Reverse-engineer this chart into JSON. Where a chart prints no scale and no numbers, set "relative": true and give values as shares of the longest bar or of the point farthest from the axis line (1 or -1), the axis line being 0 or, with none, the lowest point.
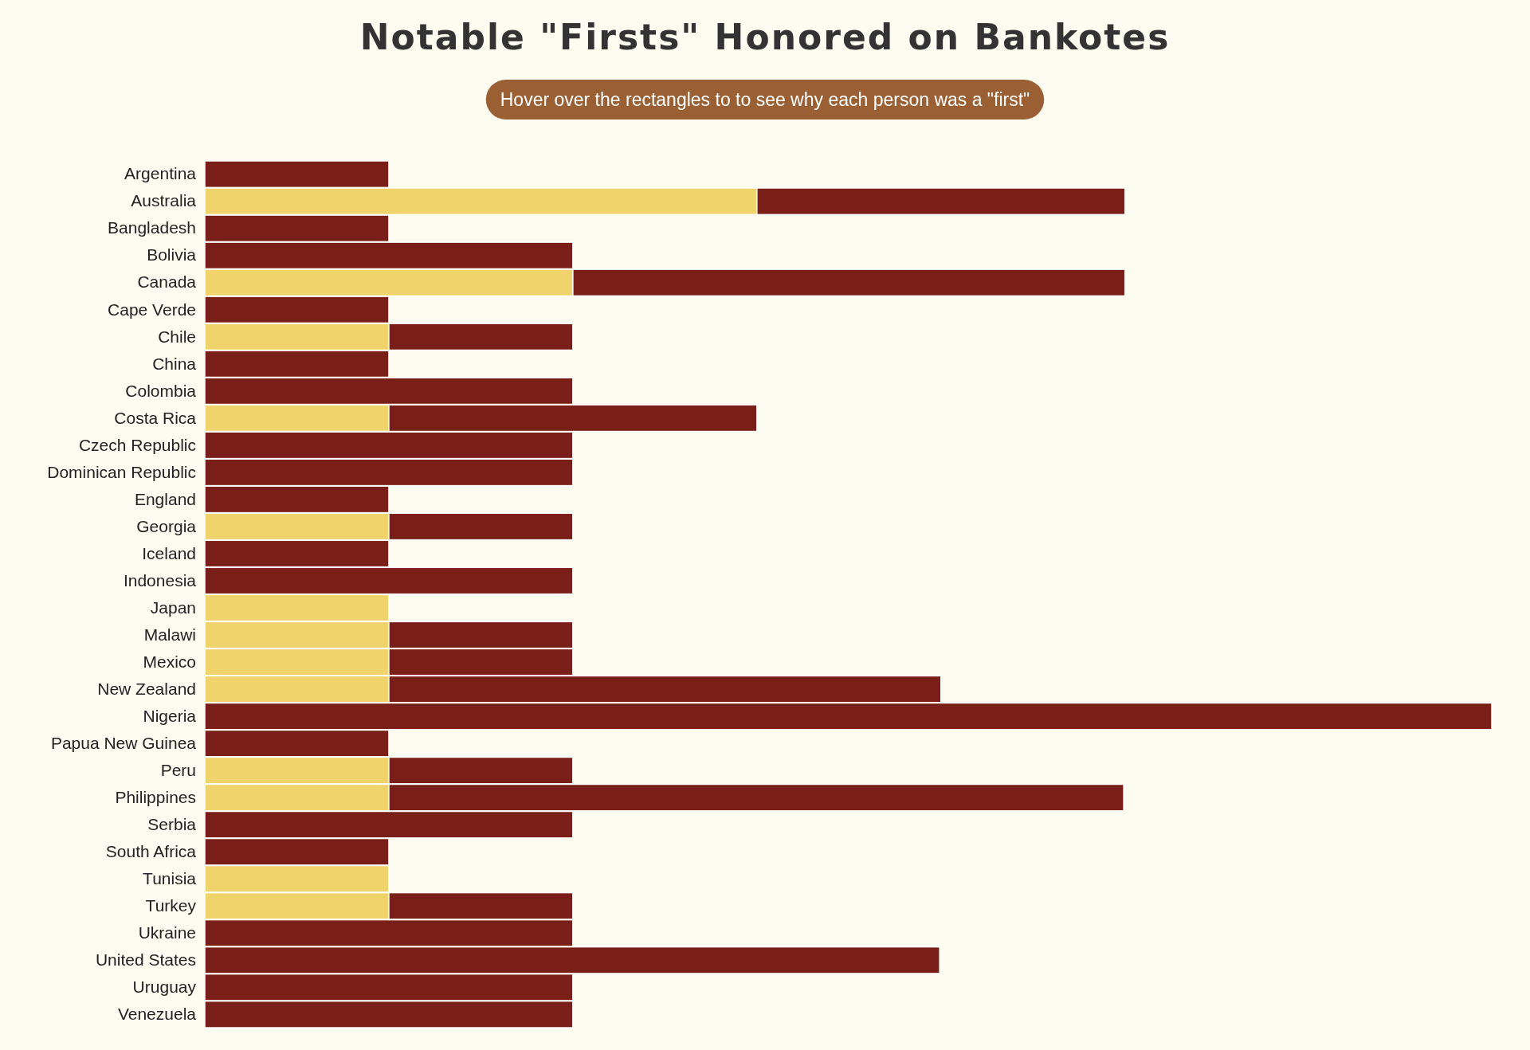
{
  "chart_data": {
    "type": "bar",
    "orientation": "horizontal",
    "stacked": true,
    "relative": true,
    "title": "Notable \"Firsts\" Honored on Bankotes",
    "subtitle": "Hover over the rectangles to to see why each person was a \"first\"",
    "categories": [
      "Argentina",
      "Australia",
      "Bangladesh",
      "Bolivia",
      "Canada",
      "Cape Verde",
      "Chile",
      "China",
      "Colombia",
      "Costa Rica",
      "Czech Republic",
      "Dominican Republic",
      "England",
      "Georgia",
      "Iceland",
      "Indonesia",
      "Japan",
      "Malawi",
      "Mexico",
      "New Zealand",
      "Nigeria",
      "Papua New Guinea",
      "Peru",
      "Philippines",
      "Serbia",
      "South Africa",
      "Tunisia",
      "Turkey",
      "Ukraine",
      "United States",
      "Uruguay",
      "Venezuela"
    ],
    "series": [
      {
        "color": "#f0d36b",
        "values": [
          null,
          0.429,
          null,
          null,
          0.286,
          null,
          0.143,
          null,
          null,
          0.143,
          null,
          null,
          null,
          0.143,
          null,
          null,
          0.143,
          0.143,
          0.143,
          0.143,
          null,
          null,
          0.143,
          0.143,
          null,
          null,
          0.143,
          0.143,
          null,
          null,
          null,
          null
        ]
      },
      {
        "color": "#7a1f18",
        "values": [
          0.143,
          0.286,
          0.143,
          0.286,
          0.429,
          0.143,
          0.143,
          0.143,
          0.286,
          0.286,
          0.286,
          0.286,
          0.143,
          0.143,
          0.143,
          0.286,
          null,
          0.143,
          0.143,
          0.429,
          1,
          0.143,
          0.143,
          0.571,
          0.286,
          0.143,
          null,
          0.143,
          0.286,
          0.571,
          0.286,
          0.286
        ]
      }
    ]
  }
}
